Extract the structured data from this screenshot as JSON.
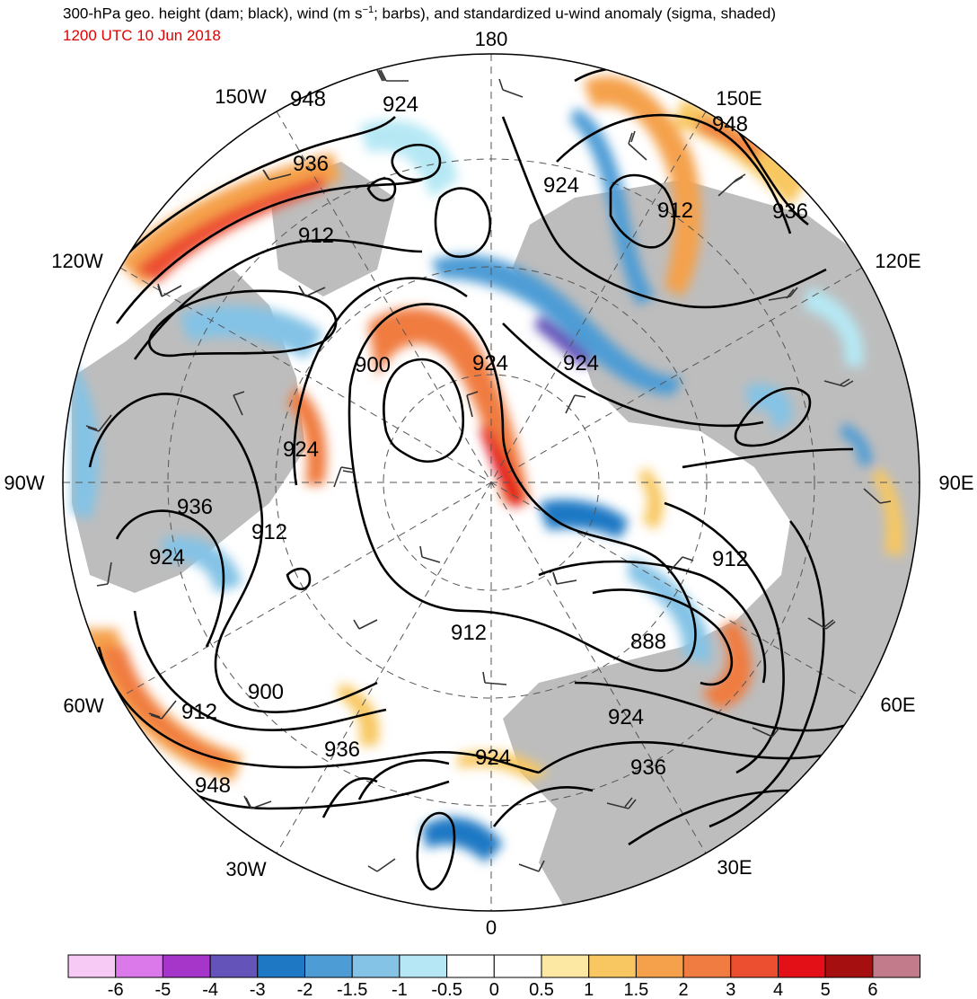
{
  "header": {
    "title_main": "300-hPa geo. height (dam; black), wind (m s",
    "title_sup": "−1",
    "title_rest": "; barbs), and standardized u-wind anomaly (sigma, shaded)",
    "valid_time": "1200 UTC 10 Jun 2018"
  },
  "map": {
    "projection": "north-polar-stereographic",
    "meridian_labels": [
      {
        "text": "180"
      },
      {
        "text": "150E"
      },
      {
        "text": "120E"
      },
      {
        "text": "90E"
      },
      {
        "text": "60E"
      },
      {
        "text": "30E"
      },
      {
        "text": "0"
      },
      {
        "text": "30W"
      },
      {
        "text": "60W"
      },
      {
        "text": "90W"
      },
      {
        "text": "120W"
      },
      {
        "text": "150W"
      }
    ],
    "contour_labels": [
      {
        "text": "948"
      },
      {
        "text": "924"
      },
      {
        "text": "948"
      },
      {
        "text": "936"
      },
      {
        "text": "924"
      },
      {
        "text": "912"
      },
      {
        "text": "936"
      },
      {
        "text": "912"
      },
      {
        "text": "900"
      },
      {
        "text": "924"
      },
      {
        "text": "924"
      },
      {
        "text": "924"
      },
      {
        "text": "936"
      },
      {
        "text": "912"
      },
      {
        "text": "924"
      },
      {
        "text": "912"
      },
      {
        "text": "912"
      },
      {
        "text": "888"
      },
      {
        "text": "900"
      },
      {
        "text": "912"
      },
      {
        "text": "924"
      },
      {
        "text": "936"
      },
      {
        "text": "924"
      },
      {
        "text": "936"
      },
      {
        "text": "948"
      }
    ]
  },
  "colorbar": {
    "colors": [
      "#f7c9f5",
      "#dc79ea",
      "#a636c9",
      "#6453b9",
      "#1e78c4",
      "#4d9cd6",
      "#84c3e6",
      "#b5e8f4",
      "#ffffff",
      "#ffffff",
      "#fce8a2",
      "#f8c761",
      "#f5a14b",
      "#f07c41",
      "#ec4e30",
      "#e31117",
      "#a60f0f",
      "#c27b8a"
    ],
    "tick_labels": [
      "-6",
      "-5",
      "-4",
      "-3",
      "-2",
      "-1.5",
      "-1",
      "-0.5",
      "0",
      "0.5",
      "1",
      "1.5",
      "2",
      "3",
      "4",
      "5",
      "6"
    ]
  }
}
